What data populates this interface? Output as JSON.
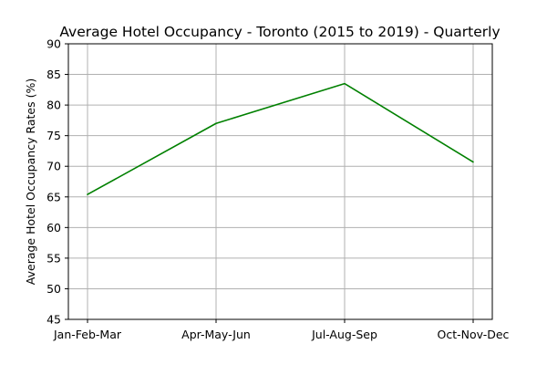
{
  "chart_data": {
    "type": "line",
    "title": "Average Hotel Occupancy - Toronto (2015 to 2019) - Quarterly",
    "xlabel": "",
    "ylabel": "Average Hotel Occupancy Rates (%)",
    "categories": [
      "Jan-Feb-Mar",
      "Apr-May-Jun",
      "Jul-Aug-Sep",
      "Oct-Nov-Dec"
    ],
    "series": [
      {
        "values": [
          65.4,
          77.0,
          83.5,
          70.7
        ],
        "color": "#008000"
      }
    ],
    "ylim": [
      45,
      90
    ],
    "yticks": [
      45,
      50,
      55,
      60,
      65,
      70,
      75,
      80,
      85,
      90
    ],
    "grid": true,
    "legend": "none"
  }
}
